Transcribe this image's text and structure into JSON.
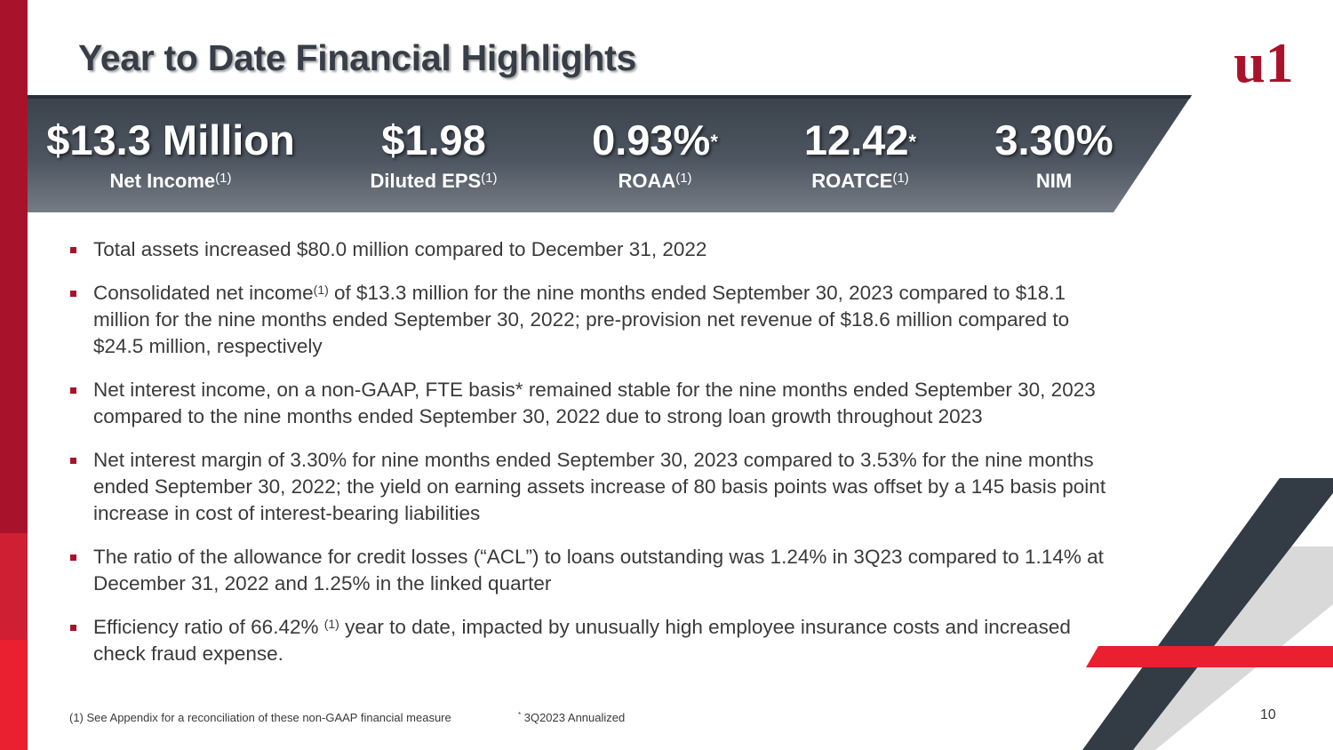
{
  "title": "Year to Date Financial Highlights",
  "logo": {
    "text": "u1",
    "color": "#a8132b"
  },
  "metrics": [
    {
      "value": "$13.3 Million",
      "star": "",
      "label": "Net Income",
      "label_sup": "(1)"
    },
    {
      "value": "$1.98",
      "star": "",
      "label": "Diluted EPS",
      "label_sup": "(1)"
    },
    {
      "value": "0.93%",
      "star": "*",
      "label": "ROAA",
      "label_sup": "(1)"
    },
    {
      "value": "12.42",
      "star": "*",
      "label": "ROATCE",
      "label_sup": "(1)"
    },
    {
      "value": "3.30%",
      "star": "",
      "label": "NIM",
      "label_sup": ""
    }
  ],
  "bullets": [
    {
      "pre": "Total assets increased $80.0 million compared to December 31, 2022",
      "sup": "",
      "post": ""
    },
    {
      "pre": "Consolidated net income",
      "sup": "(1)",
      "post": " of $13.3 million for the nine months ended September 30, 2023 compared to $18.1 million for the nine months ended September 30, 2022; pre-provision net revenue of $18.6 million compared to $24.5 million, respectively"
    },
    {
      "pre": "Net interest income, on a non-GAAP, FTE basis* remained stable for the nine months ended September 30, 2023 compared to the nine months ended September 30, 2022 due to strong loan growth throughout 2023",
      "sup": "",
      "post": ""
    },
    {
      "pre": "Net interest margin of 3.30% for nine months ended September 30, 2023 compared to 3.53% for the nine months ended September 30, 2022; the yield on earning assets increase of 80 basis points was offset by a 145 basis point increase in cost of interest-bearing liabilities",
      "sup": "",
      "post": ""
    },
    {
      "pre": "The ratio of the allowance for credit losses (“ACL”) to loans outstanding was 1.24% in 3Q23 compared to 1.14% at December 31, 2022 and 1.25% in the linked quarter",
      "sup": "",
      "post": ""
    },
    {
      "pre": "Efficiency ratio of 66.42% ",
      "sup": "(1)",
      "post": " year to date, impacted by unusually high employee insurance costs and increased check fraud expense."
    }
  ],
  "footnotes": {
    "appendix": "(1) See Appendix for a reconciliation of these non-GAAP financial measure",
    "annualized_star": "*",
    "annualized": " 3Q2023 Annualized"
  },
  "page_number": "10",
  "colors": {
    "brand_red": "#a8132b",
    "bright_red": "#ea1f2f",
    "dark_slate": "#333b45",
    "light_gray": "#d9d9d9",
    "text": "#3a3a3a"
  }
}
